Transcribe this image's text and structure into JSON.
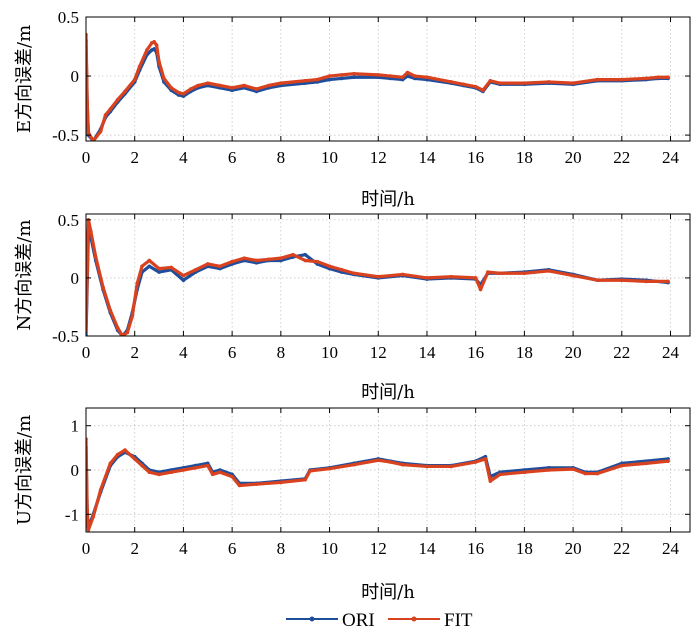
{
  "chart_data": [
    {
      "type": "line",
      "ylabel": "E方向误差/m",
      "xlabel": "时间/h",
      "xlim": [
        0,
        24.8
      ],
      "ylim": [
        -0.55,
        0.5
      ],
      "xticks": [
        0,
        2,
        4,
        6,
        8,
        10,
        12,
        14,
        16,
        18,
        20,
        22,
        24
      ],
      "yticks": [
        -0.5,
        0,
        0.5
      ],
      "ytick_labels": [
        "-0.5",
        "0",
        "0.5"
      ],
      "grid": true,
      "series": [
        {
          "name": "ORI",
          "color": "#1f4e9c",
          "x": [
            0,
            0.05,
            0.1,
            0.3,
            0.6,
            0.8,
            1.0,
            1.3,
            1.6,
            2.0,
            2.2,
            2.5,
            2.7,
            2.8,
            2.9,
            3.0,
            3.2,
            3.5,
            3.8,
            4.0,
            4.3,
            4.6,
            5.0,
            5.5,
            6.0,
            6.5,
            7.0,
            7.5,
            8.0,
            9.0,
            9.5,
            10.0,
            10.5,
            11.0,
            12.0,
            12.5,
            13.0,
            13.2,
            13.5,
            14.0,
            15.0,
            15.5,
            16.0,
            16.3,
            16.6,
            17.0,
            18.0,
            19.0,
            20.0,
            21.0,
            22.0,
            23.0,
            23.5,
            23.9
          ],
          "y": [
            0.3,
            -0.25,
            -0.5,
            -0.55,
            -0.45,
            -0.35,
            -0.3,
            -0.22,
            -0.15,
            -0.05,
            0.05,
            0.18,
            0.22,
            0.23,
            0.2,
            0.08,
            -0.05,
            -0.12,
            -0.16,
            -0.17,
            -0.13,
            -0.1,
            -0.08,
            -0.1,
            -0.12,
            -0.1,
            -0.13,
            -0.1,
            -0.08,
            -0.06,
            -0.05,
            -0.03,
            -0.02,
            -0.01,
            -0.01,
            -0.02,
            -0.03,
            0.0,
            -0.02,
            -0.03,
            -0.06,
            -0.08,
            -0.1,
            -0.13,
            -0.05,
            -0.07,
            -0.07,
            -0.06,
            -0.07,
            -0.04,
            -0.04,
            -0.03,
            -0.02,
            -0.02
          ]
        },
        {
          "name": "FIT",
          "color": "#d9421f",
          "x": [
            0,
            0.05,
            0.1,
            0.3,
            0.6,
            0.8,
            1.0,
            1.3,
            1.6,
            2.0,
            2.2,
            2.5,
            2.7,
            2.8,
            2.9,
            3.0,
            3.2,
            3.5,
            3.8,
            4.0,
            4.3,
            4.6,
            5.0,
            5.5,
            6.0,
            6.5,
            7.0,
            7.5,
            8.0,
            9.0,
            9.5,
            10.0,
            10.5,
            11.0,
            12.0,
            12.5,
            13.0,
            13.2,
            13.5,
            14.0,
            15.0,
            15.5,
            16.0,
            16.3,
            16.6,
            17.0,
            18.0,
            19.0,
            20.0,
            21.0,
            22.0,
            23.0,
            23.5,
            23.9
          ],
          "y": [
            0.35,
            -0.22,
            -0.48,
            -0.55,
            -0.47,
            -0.33,
            -0.28,
            -0.2,
            -0.13,
            -0.03,
            0.08,
            0.22,
            0.28,
            0.29,
            0.26,
            0.12,
            -0.02,
            -0.1,
            -0.14,
            -0.15,
            -0.11,
            -0.08,
            -0.06,
            -0.08,
            -0.1,
            -0.08,
            -0.11,
            -0.08,
            -0.06,
            -0.04,
            -0.03,
            0.0,
            0.01,
            0.02,
            0.01,
            0.0,
            -0.01,
            0.03,
            0.0,
            -0.01,
            -0.05,
            -0.07,
            -0.09,
            -0.12,
            -0.04,
            -0.06,
            -0.06,
            -0.05,
            -0.06,
            -0.03,
            -0.03,
            -0.02,
            -0.01,
            -0.01
          ]
        }
      ]
    },
    {
      "type": "line",
      "ylabel": "N方向误差/m",
      "xlabel": "时间/h",
      "xlim": [
        0,
        24.8
      ],
      "ylim": [
        -0.5,
        0.55
      ],
      "xticks": [
        0,
        2,
        4,
        6,
        8,
        10,
        12,
        14,
        16,
        18,
        20,
        22,
        24
      ],
      "yticks": [
        -0.5,
        0,
        0.5
      ],
      "ytick_labels": [
        "-0.5",
        "0",
        "0.5"
      ],
      "grid": true,
      "series": [
        {
          "name": "ORI",
          "color": "#1f4e9c",
          "x": [
            0,
            0.1,
            0.2,
            0.4,
            0.7,
            1.0,
            1.3,
            1.5,
            1.7,
            1.9,
            2.1,
            2.3,
            2.6,
            3.0,
            3.5,
            4.0,
            4.5,
            5.0,
            5.5,
            6.0,
            6.5,
            7.0,
            7.5,
            8.0,
            8.5,
            9.0,
            9.5,
            10.0,
            10.5,
            11.0,
            12.0,
            13.0,
            14.0,
            15.0,
            16.0,
            16.2,
            16.5,
            17.0,
            18.0,
            19.0,
            20.0,
            21.0,
            22.0,
            23.0,
            23.9
          ],
          "y": [
            -0.5,
            0.4,
            0.35,
            0.15,
            -0.1,
            -0.3,
            -0.45,
            -0.5,
            -0.45,
            -0.3,
            -0.1,
            0.05,
            0.1,
            0.05,
            0.07,
            -0.02,
            0.05,
            0.1,
            0.08,
            0.12,
            0.15,
            0.13,
            0.15,
            0.15,
            0.18,
            0.2,
            0.12,
            0.08,
            0.05,
            0.03,
            0.0,
            0.02,
            -0.01,
            0.0,
            -0.01,
            -0.06,
            0.04,
            0.04,
            0.05,
            0.07,
            0.03,
            -0.02,
            -0.01,
            -0.02,
            -0.04
          ]
        },
        {
          "name": "FIT",
          "color": "#d9421f",
          "x": [
            0,
            0.1,
            0.2,
            0.4,
            0.7,
            1.0,
            1.3,
            1.5,
            1.7,
            1.9,
            2.1,
            2.3,
            2.6,
            3.0,
            3.5,
            4.0,
            4.5,
            5.0,
            5.5,
            6.0,
            6.5,
            7.0,
            7.5,
            8.0,
            8.5,
            9.0,
            9.5,
            10.0,
            10.5,
            11.0,
            12.0,
            13.0,
            14.0,
            15.0,
            16.0,
            16.2,
            16.5,
            17.0,
            18.0,
            19.0,
            20.0,
            21.0,
            22.0,
            23.0,
            23.9
          ],
          "y": [
            -0.45,
            0.5,
            0.4,
            0.18,
            -0.08,
            -0.28,
            -0.43,
            -0.5,
            -0.47,
            -0.33,
            -0.05,
            0.1,
            0.15,
            0.08,
            0.09,
            0.02,
            0.07,
            0.12,
            0.1,
            0.14,
            0.17,
            0.15,
            0.16,
            0.17,
            0.2,
            0.15,
            0.14,
            0.1,
            0.07,
            0.04,
            0.01,
            0.03,
            0.0,
            0.01,
            0.0,
            -0.1,
            0.05,
            0.04,
            0.04,
            0.06,
            0.02,
            -0.02,
            -0.02,
            -0.03,
            -0.03
          ]
        }
      ]
    },
    {
      "type": "line",
      "ylabel": "U方向误差/m",
      "xlabel": "时间/h",
      "xlim": [
        0,
        24.8
      ],
      "ylim": [
        -1.4,
        1.4
      ],
      "xticks": [
        0,
        2,
        4,
        6,
        8,
        10,
        12,
        14,
        16,
        18,
        20,
        22,
        24
      ],
      "yticks": [
        -1,
        0,
        1
      ],
      "ytick_labels": [
        "-1",
        "0",
        "1"
      ],
      "grid": true,
      "series": [
        {
          "name": "ORI",
          "color": "#1f4e9c",
          "x": [
            0,
            0.05,
            0.1,
            0.3,
            0.6,
            1.0,
            1.3,
            1.6,
            2.0,
            2.3,
            2.6,
            3.0,
            3.5,
            4.0,
            4.5,
            5.0,
            5.2,
            5.5,
            6.0,
            6.3,
            7.0,
            8.0,
            9.0,
            9.2,
            10.0,
            11.0,
            12.0,
            12.5,
            13.0,
            14.0,
            15.0,
            16.0,
            16.4,
            16.6,
            17.0,
            18.0,
            19.0,
            20.0,
            20.5,
            21.0,
            22.0,
            23.0,
            23.9
          ],
          "y": [
            0.5,
            -1.0,
            -1.3,
            -1.0,
            -0.5,
            0.1,
            0.3,
            0.4,
            0.3,
            0.15,
            0.0,
            -0.05,
            0.0,
            0.05,
            0.1,
            0.15,
            -0.05,
            0.0,
            -0.1,
            -0.3,
            -0.3,
            -0.25,
            -0.2,
            0.0,
            0.05,
            0.15,
            0.25,
            0.2,
            0.15,
            0.1,
            0.1,
            0.2,
            0.3,
            -0.15,
            -0.05,
            0.0,
            0.05,
            0.05,
            -0.05,
            -0.05,
            0.15,
            0.2,
            0.25
          ]
        },
        {
          "name": "FIT",
          "color": "#d9421f",
          "x": [
            0,
            0.05,
            0.1,
            0.3,
            0.6,
            1.0,
            1.3,
            1.6,
            2.0,
            2.3,
            2.6,
            3.0,
            3.5,
            4.0,
            4.5,
            5.0,
            5.2,
            5.5,
            6.0,
            6.3,
            7.0,
            8.0,
            9.0,
            9.2,
            10.0,
            11.0,
            12.0,
            12.5,
            13.0,
            14.0,
            15.0,
            16.0,
            16.4,
            16.6,
            17.0,
            18.0,
            19.0,
            20.0,
            20.5,
            21.0,
            22.0,
            23.0,
            23.9
          ],
          "y": [
            0.7,
            -0.9,
            -1.35,
            -1.05,
            -0.45,
            0.15,
            0.35,
            0.45,
            0.25,
            0.1,
            -0.05,
            -0.1,
            -0.05,
            0.0,
            0.05,
            0.1,
            -0.1,
            -0.05,
            -0.15,
            -0.35,
            -0.32,
            -0.28,
            -0.22,
            -0.02,
            0.03,
            0.12,
            0.22,
            0.18,
            0.12,
            0.08,
            0.08,
            0.18,
            0.25,
            -0.25,
            -0.1,
            -0.05,
            0.0,
            0.02,
            -0.08,
            -0.08,
            0.1,
            0.15,
            0.2
          ]
        }
      ]
    }
  ],
  "legend": {
    "entries": [
      {
        "label": "ORI",
        "color": "#1f4e9c"
      },
      {
        "label": "FIT",
        "color": "#d9421f"
      }
    ]
  }
}
